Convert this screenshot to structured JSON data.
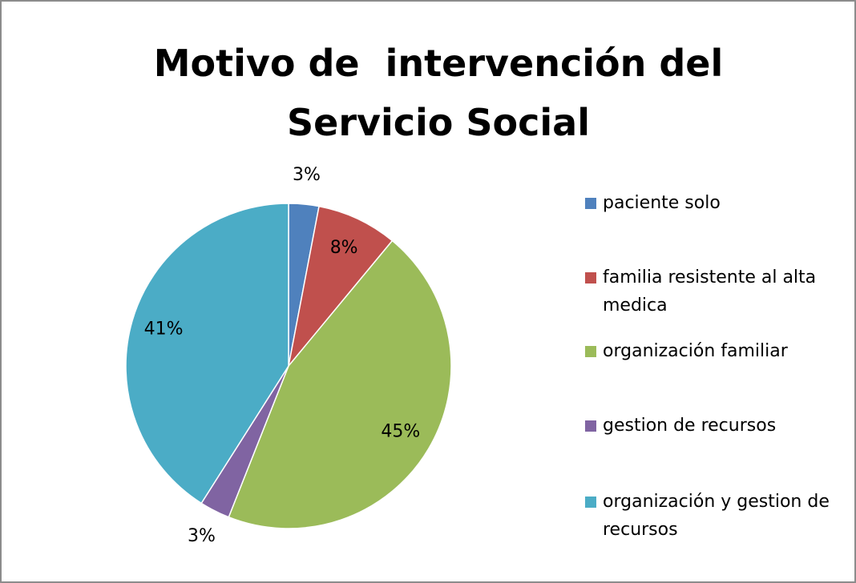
{
  "chart_data": {
    "type": "pie",
    "title": "Motivo de  intervención del Servicio Social",
    "categories": [
      "paciente solo",
      "familia resistente al alta medica",
      "organización familiar",
      "gestion de recursos",
      "organización y gestion de recursos"
    ],
    "values": [
      3,
      8,
      45,
      3,
      41
    ],
    "value_labels": [
      "3%",
      "8%",
      "45%",
      "3%",
      "41%"
    ],
    "colors": [
      "#4f81bd",
      "#c0504d",
      "#9bbb59",
      "#8064a2",
      "#4bacc6"
    ],
    "legend": "right"
  }
}
